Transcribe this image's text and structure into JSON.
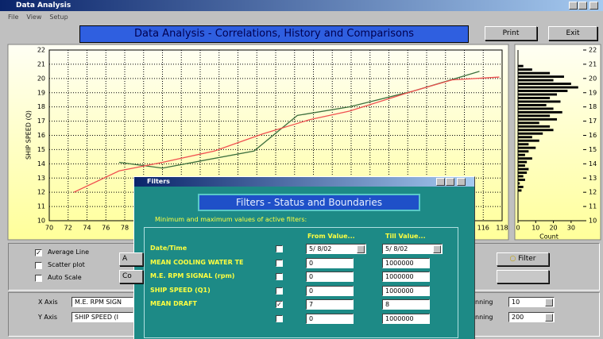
{
  "window": {
    "title": "Data Analysis",
    "menu": [
      "File",
      "View",
      "Setup"
    ]
  },
  "header": {
    "title": "Data Analysis  - Correlations, History and Comparisons",
    "buttons": [
      "Print",
      "Exit"
    ]
  },
  "chart_data": [
    {
      "type": "line",
      "y_label": "SHIP SPEED (Q)",
      "xlim": [
        70,
        118
      ],
      "xticks": [
        70,
        72,
        74,
        76,
        78,
        80,
        82,
        84,
        86,
        88,
        90,
        92,
        94,
        96,
        98,
        100,
        102,
        104,
        106,
        108,
        110,
        112,
        114,
        116,
        118
      ],
      "ylim": [
        10,
        22
      ],
      "yticks": [
        10,
        11,
        12,
        13,
        14,
        15,
        16,
        17,
        18,
        19,
        20,
        21,
        22
      ],
      "grid": true,
      "series": [
        {
          "color": "#3c6e3c",
          "x": [
            77.4,
            82,
            91.7,
            96.3,
            101.8,
            108.5,
            115.6
          ],
          "values": [
            14.1,
            13.7,
            14.9,
            17.4,
            18,
            19.1,
            20.5
          ]
        },
        {
          "color": "#f05050",
          "x": [
            72.6,
            77.4,
            82,
            87.5,
            92.6,
            97.6,
            101.8,
            108.5,
            112.7,
            117.7
          ],
          "values": [
            12,
            13.5,
            14.1,
            14.9,
            16.1,
            17.1,
            17.7,
            19.1,
            19.9,
            20.1
          ]
        }
      ]
    },
    {
      "type": "barh",
      "x_label": "Count",
      "xlim": [
        0,
        35
      ],
      "xticks": [
        0,
        10,
        20,
        30
      ],
      "ylim": [
        10,
        22
      ],
      "yticks": [
        10,
        11,
        12,
        13,
        14,
        15,
        16,
        17,
        18,
        19,
        20,
        21,
        22
      ],
      "color": "#000000",
      "bins": [
        12,
        12.25,
        12.5,
        12.75,
        13,
        13.25,
        13.5,
        13.75,
        14,
        14.25,
        14.5,
        14.75,
        15,
        15.25,
        15.5,
        15.75,
        16,
        16.25,
        16.5,
        16.75,
        17,
        17.25,
        17.5,
        17.75,
        18,
        18.25,
        18.5,
        18.75,
        19,
        19.25,
        19.5,
        19.75,
        20,
        20.25,
        20.5,
        20.75,
        21
      ],
      "counts": [
        2,
        3,
        1,
        4,
        3,
        5,
        6,
        4,
        5,
        8,
        4,
        6,
        10,
        6,
        12,
        8,
        14,
        20,
        18,
        12,
        22,
        18,
        25,
        20,
        16,
        24,
        18,
        22,
        28,
        34,
        30,
        20,
        26,
        18,
        8,
        3
      ]
    }
  ],
  "options": {
    "checkboxes": [
      {
        "label": "Average Line",
        "checked": true
      },
      {
        "label": "Scatter plot",
        "checked": false
      },
      {
        "label": "Auto Scale",
        "checked": false
      }
    ],
    "buttons": [
      "A",
      "Co"
    ],
    "filter_button": "Filter"
  },
  "axes_select": {
    "x_label": "X Axis",
    "x_value": "M.E. RPM SIGN",
    "y_label": "Y Axis",
    "y_value": "SHIP SPEED (I",
    "bins": [
      {
        "label": "nning",
        "value": 10
      },
      {
        "label": "nning",
        "value": 200
      }
    ]
  },
  "filters": {
    "title": "Filters",
    "heading": "Filters  -  Status and Boundaries",
    "note": "Minimum and maximum values of active filters:",
    "columns": [
      "From Value...",
      "Till Value..."
    ],
    "rows": [
      {
        "label": "Date/Time",
        "checked": false,
        "from": "5/ 8/02",
        "till": "5/ 8/02"
      },
      {
        "label": "MEAN COOLING WATER TE",
        "checked": false,
        "from": 0,
        "till": 1000000
      },
      {
        "label": "M.E. RPM SIGNAL  (rpm)",
        "checked": false,
        "from": 0,
        "till": 1000000
      },
      {
        "label": "SHIP SPEED  (Q1)",
        "checked": false,
        "from": 0,
        "till": 1000000
      },
      {
        "label": "MEAN DRAFT",
        "checked": true,
        "from": 7,
        "till": 8
      },
      {
        "checked": false,
        "from": 0,
        "till": 1000000
      }
    ]
  }
}
